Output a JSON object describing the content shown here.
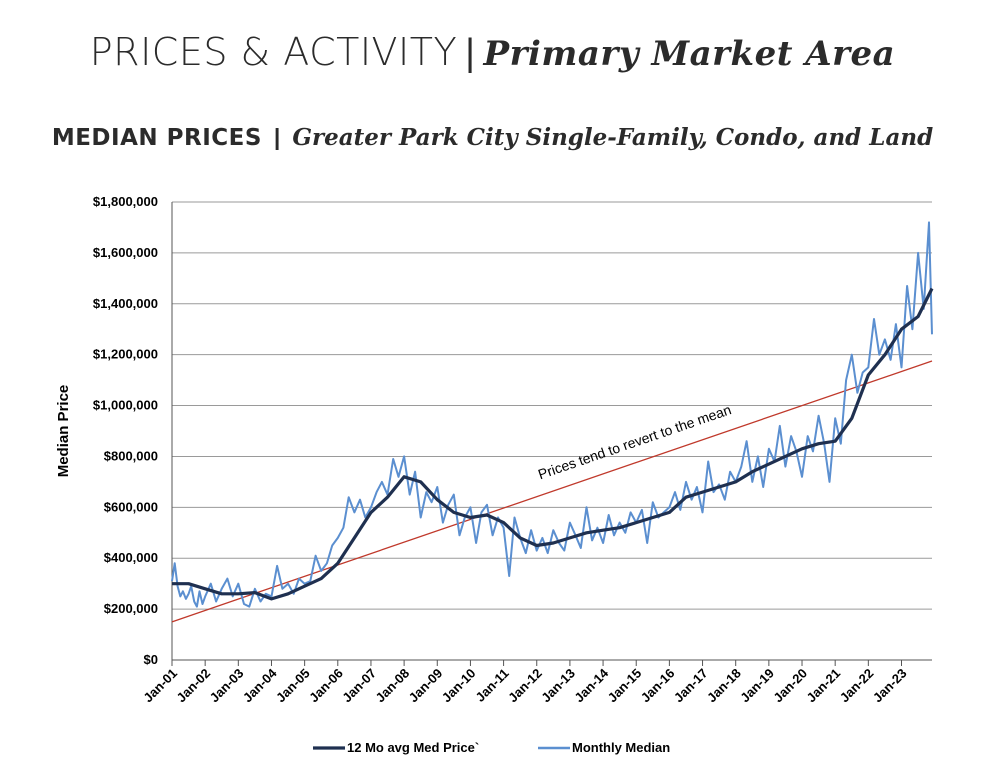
{
  "header": {
    "title_main": "PRICES & ACTIVITY",
    "title_sep": "|",
    "title_sub": "Primary Market Area"
  },
  "chart_heading": {
    "main": "MEDIAN PRICES",
    "sep": "|",
    "sub": "Greater Park City Single-Family, Condo, and Land"
  },
  "colors": {
    "avg_line": "#1f3050",
    "monthly_line": "#5b8fd0",
    "trend_line": "#c0392b",
    "grid": "#9a9a9a",
    "axis": "#555555"
  },
  "chart_data": {
    "type": "line",
    "ylabel": "Median Price",
    "xlabel": "",
    "ylim": [
      0,
      1800000
    ],
    "y_ticks": [
      0,
      200000,
      400000,
      600000,
      800000,
      1000000,
      1200000,
      1400000,
      1600000,
      1800000
    ],
    "y_tick_labels": [
      "$0",
      "$200,000",
      "$400,000",
      "$600,000",
      "$800,000",
      "$1,000,000",
      "$1,200,000",
      "$1,400,000",
      "$1,600,000",
      "$1,800,000"
    ],
    "x_tick_labels": [
      "Jan-01",
      "Jan-02",
      "Jan-03",
      "Jan-04",
      "Jan-05",
      "Jan-06",
      "Jan-07",
      "Jan-08",
      "Jan-09",
      "Jan-10",
      "Jan-11",
      "Jan-12",
      "Jan-13",
      "Jan-14",
      "Jan-15",
      "Jan-16",
      "Jan-17",
      "Jan-18",
      "Jan-19",
      "Jan-20",
      "Jan-21",
      "Jan-22",
      "Jan-23"
    ],
    "x_start_year": 2001,
    "x_end_year": 2023.92,
    "grid": true,
    "legend_position": "bottom",
    "annotation": "Prices tend to revert to the mean",
    "trend_line": {
      "name": "Trend",
      "start": [
        2001,
        150000
      ],
      "end": [
        2023.92,
        1175000
      ]
    },
    "series": [
      {
        "name": "12 Mo avg Med Price`",
        "style": "thick",
        "points": [
          [
            2001.0,
            300000
          ],
          [
            2001.5,
            300000
          ],
          [
            2002.0,
            280000
          ],
          [
            2002.5,
            260000
          ],
          [
            2003.0,
            260000
          ],
          [
            2003.5,
            265000
          ],
          [
            2004.0,
            240000
          ],
          [
            2004.5,
            260000
          ],
          [
            2005.0,
            290000
          ],
          [
            2005.5,
            320000
          ],
          [
            2006.0,
            380000
          ],
          [
            2006.5,
            480000
          ],
          [
            2007.0,
            580000
          ],
          [
            2007.5,
            640000
          ],
          [
            2008.0,
            720000
          ],
          [
            2008.5,
            700000
          ],
          [
            2009.0,
            630000
          ],
          [
            2009.5,
            580000
          ],
          [
            2010.0,
            560000
          ],
          [
            2010.5,
            570000
          ],
          [
            2011.0,
            540000
          ],
          [
            2011.5,
            480000
          ],
          [
            2012.0,
            450000
          ],
          [
            2012.5,
            460000
          ],
          [
            2013.0,
            480000
          ],
          [
            2013.5,
            500000
          ],
          [
            2014.0,
            510000
          ],
          [
            2014.5,
            520000
          ],
          [
            2015.0,
            540000
          ],
          [
            2015.5,
            560000
          ],
          [
            2016.0,
            580000
          ],
          [
            2016.5,
            640000
          ],
          [
            2017.0,
            660000
          ],
          [
            2017.5,
            680000
          ],
          [
            2018.0,
            700000
          ],
          [
            2018.5,
            740000
          ],
          [
            2019.0,
            770000
          ],
          [
            2019.5,
            800000
          ],
          [
            2020.0,
            830000
          ],
          [
            2020.5,
            850000
          ],
          [
            2021.0,
            860000
          ],
          [
            2021.5,
            950000
          ],
          [
            2022.0,
            1120000
          ],
          [
            2022.5,
            1200000
          ],
          [
            2023.0,
            1300000
          ],
          [
            2023.5,
            1350000
          ],
          [
            2023.92,
            1460000
          ]
        ]
      },
      {
        "name": "Monthly Median",
        "style": "thin",
        "points": [
          [
            2001.0,
            310000
          ],
          [
            2001.08,
            380000
          ],
          [
            2001.17,
            290000
          ],
          [
            2001.25,
            250000
          ],
          [
            2001.33,
            270000
          ],
          [
            2001.42,
            240000
          ],
          [
            2001.5,
            260000
          ],
          [
            2001.58,
            290000
          ],
          [
            2001.67,
            230000
          ],
          [
            2001.75,
            210000
          ],
          [
            2001.83,
            270000
          ],
          [
            2001.92,
            220000
          ],
          [
            2002.0,
            250000
          ],
          [
            2002.17,
            300000
          ],
          [
            2002.33,
            230000
          ],
          [
            2002.5,
            280000
          ],
          [
            2002.67,
            320000
          ],
          [
            2002.83,
            250000
          ],
          [
            2003.0,
            300000
          ],
          [
            2003.17,
            220000
          ],
          [
            2003.33,
            210000
          ],
          [
            2003.5,
            280000
          ],
          [
            2003.67,
            230000
          ],
          [
            2003.83,
            260000
          ],
          [
            2004.0,
            250000
          ],
          [
            2004.17,
            370000
          ],
          [
            2004.33,
            280000
          ],
          [
            2004.5,
            300000
          ],
          [
            2004.67,
            260000
          ],
          [
            2004.83,
            320000
          ],
          [
            2005.0,
            300000
          ],
          [
            2005.17,
            310000
          ],
          [
            2005.33,
            410000
          ],
          [
            2005.5,
            350000
          ],
          [
            2005.67,
            380000
          ],
          [
            2005.83,
            450000
          ],
          [
            2006.0,
            480000
          ],
          [
            2006.17,
            520000
          ],
          [
            2006.33,
            640000
          ],
          [
            2006.5,
            580000
          ],
          [
            2006.67,
            630000
          ],
          [
            2006.83,
            560000
          ],
          [
            2007.0,
            600000
          ],
          [
            2007.17,
            660000
          ],
          [
            2007.33,
            700000
          ],
          [
            2007.5,
            650000
          ],
          [
            2007.67,
            790000
          ],
          [
            2007.83,
            720000
          ],
          [
            2008.0,
            800000
          ],
          [
            2008.17,
            650000
          ],
          [
            2008.33,
            740000
          ],
          [
            2008.5,
            560000
          ],
          [
            2008.67,
            660000
          ],
          [
            2008.83,
            620000
          ],
          [
            2009.0,
            680000
          ],
          [
            2009.17,
            540000
          ],
          [
            2009.33,
            610000
          ],
          [
            2009.5,
            650000
          ],
          [
            2009.67,
            490000
          ],
          [
            2009.83,
            560000
          ],
          [
            2010.0,
            600000
          ],
          [
            2010.17,
            460000
          ],
          [
            2010.33,
            580000
          ],
          [
            2010.5,
            610000
          ],
          [
            2010.67,
            490000
          ],
          [
            2010.83,
            560000
          ],
          [
            2011.0,
            520000
          ],
          [
            2011.17,
            330000
          ],
          [
            2011.33,
            560000
          ],
          [
            2011.5,
            480000
          ],
          [
            2011.67,
            420000
          ],
          [
            2011.83,
            510000
          ],
          [
            2012.0,
            430000
          ],
          [
            2012.17,
            480000
          ],
          [
            2012.33,
            420000
          ],
          [
            2012.5,
            510000
          ],
          [
            2012.67,
            460000
          ],
          [
            2012.83,
            430000
          ],
          [
            2013.0,
            540000
          ],
          [
            2013.17,
            490000
          ],
          [
            2013.33,
            440000
          ],
          [
            2013.5,
            600000
          ],
          [
            2013.67,
            470000
          ],
          [
            2013.83,
            520000
          ],
          [
            2014.0,
            460000
          ],
          [
            2014.17,
            570000
          ],
          [
            2014.33,
            490000
          ],
          [
            2014.5,
            540000
          ],
          [
            2014.67,
            500000
          ],
          [
            2014.83,
            580000
          ],
          [
            2015.0,
            540000
          ],
          [
            2015.17,
            590000
          ],
          [
            2015.33,
            460000
          ],
          [
            2015.5,
            620000
          ],
          [
            2015.67,
            560000
          ],
          [
            2015.83,
            580000
          ],
          [
            2016.0,
            600000
          ],
          [
            2016.17,
            660000
          ],
          [
            2016.33,
            590000
          ],
          [
            2016.5,
            700000
          ],
          [
            2016.67,
            630000
          ],
          [
            2016.83,
            680000
          ],
          [
            2017.0,
            580000
          ],
          [
            2017.17,
            780000
          ],
          [
            2017.33,
            660000
          ],
          [
            2017.5,
            690000
          ],
          [
            2017.67,
            630000
          ],
          [
            2017.83,
            740000
          ],
          [
            2018.0,
            700000
          ],
          [
            2018.17,
            760000
          ],
          [
            2018.33,
            860000
          ],
          [
            2018.5,
            700000
          ],
          [
            2018.67,
            800000
          ],
          [
            2018.83,
            680000
          ],
          [
            2019.0,
            830000
          ],
          [
            2019.17,
            780000
          ],
          [
            2019.33,
            920000
          ],
          [
            2019.5,
            760000
          ],
          [
            2019.67,
            880000
          ],
          [
            2019.83,
            820000
          ],
          [
            2020.0,
            720000
          ],
          [
            2020.17,
            880000
          ],
          [
            2020.33,
            820000
          ],
          [
            2020.5,
            960000
          ],
          [
            2020.67,
            850000
          ],
          [
            2020.83,
            700000
          ],
          [
            2021.0,
            950000
          ],
          [
            2021.17,
            850000
          ],
          [
            2021.33,
            1100000
          ],
          [
            2021.5,
            1200000
          ],
          [
            2021.67,
            1050000
          ],
          [
            2021.83,
            1130000
          ],
          [
            2022.0,
            1150000
          ],
          [
            2022.17,
            1340000
          ],
          [
            2022.33,
            1200000
          ],
          [
            2022.5,
            1260000
          ],
          [
            2022.67,
            1180000
          ],
          [
            2022.83,
            1320000
          ],
          [
            2023.0,
            1150000
          ],
          [
            2023.17,
            1470000
          ],
          [
            2023.33,
            1300000
          ],
          [
            2023.5,
            1600000
          ],
          [
            2023.67,
            1380000
          ],
          [
            2023.83,
            1720000
          ],
          [
            2023.92,
            1280000
          ]
        ]
      }
    ]
  }
}
